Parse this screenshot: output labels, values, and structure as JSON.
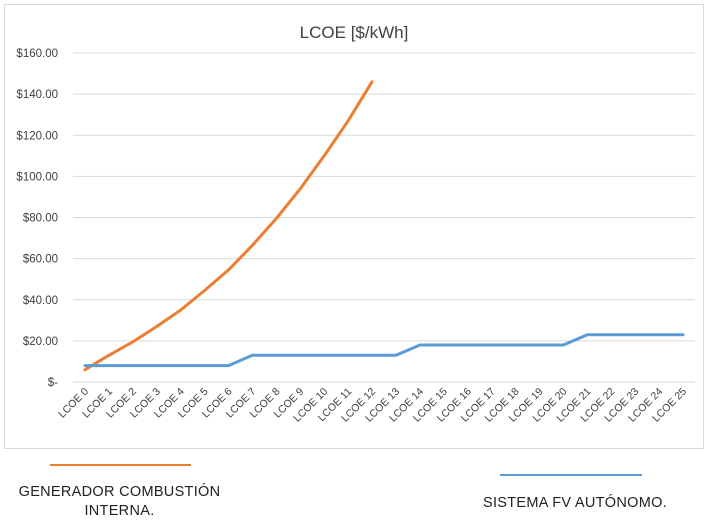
{
  "chart_data": {
    "type": "line",
    "title": "LCOE [$/kWh]",
    "categories": [
      "LCOE 0",
      "LCOE 1",
      "LCOE 2",
      "LCOE 3",
      "LCOE 4",
      "LCOE 5",
      "LCOE 6",
      "LCOE 7",
      "LCOE 8",
      "LCOE 9",
      "LCOE 10",
      "LCOE 11",
      "LCOE 12",
      "LCOE 13",
      "LCOE 14",
      "LCOE 15",
      "LCOE 16",
      "LCOE 17",
      "LCOE 18",
      "LCOE 19",
      "LCOE 20",
      "LCOE 21",
      "LCOE 22",
      "LCOE 23",
      "LCOE 24",
      "LCOE 25"
    ],
    "y_ticks": [
      0,
      20,
      40,
      60,
      80,
      100,
      120,
      140,
      160
    ],
    "y_tick_labels": [
      "$-",
      "$20.00",
      "$40.00",
      "$60.00",
      "$80.00",
      "$100.00",
      "$120.00",
      "$140.00",
      "$160.00"
    ],
    "ylim": [
      0,
      160
    ],
    "grid": true,
    "series": [
      {
        "name": "GENERADOR COMBUSTIÓN INTERNA.",
        "color": "#ED7D31",
        "values": [
          6,
          13,
          19.5,
          27,
          35,
          44.5,
          54.5,
          66.5,
          79.5,
          94,
          110,
          127,
          146,
          null,
          null,
          null,
          null,
          null,
          null,
          null,
          null,
          null,
          null,
          null,
          null,
          null
        ]
      },
      {
        "name": "SISTEMA FV AUTÓNOMO.",
        "color": "#5B9BD5",
        "values": [
          8,
          8,
          8,
          8,
          8,
          8,
          8,
          13,
          13,
          13,
          13,
          13,
          13,
          13,
          18,
          18,
          18,
          18,
          18,
          18,
          18,
          23,
          23,
          23,
          23,
          23
        ]
      }
    ]
  },
  "legend": {
    "combustion_label_line1": "GENERADOR COMBUSTIÓN",
    "combustion_label_line2": "INTERNA.",
    "fv_label": "SISTEMA FV AUTÓNOMO."
  }
}
